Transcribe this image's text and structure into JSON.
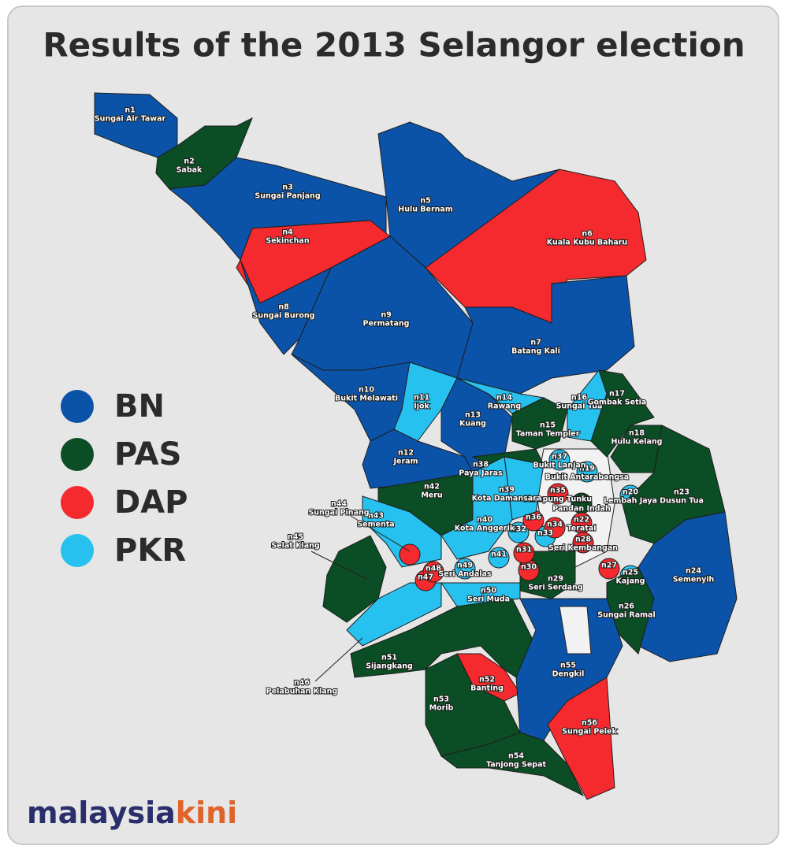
{
  "title": "Results of the 2013 Selangor election",
  "legend": [
    {
      "party": "BN",
      "color": "#0b53a8"
    },
    {
      "party": "PAS",
      "color": "#0b4d24"
    },
    {
      "party": "DAP",
      "color": "#f52a2e"
    },
    {
      "party": "PKR",
      "color": "#27c1ef"
    }
  ],
  "constituencies": [
    {
      "code": "n1",
      "name": "Sungai Air Tawar",
      "party": "BN"
    },
    {
      "code": "n2",
      "name": "Sabak",
      "party": "PAS"
    },
    {
      "code": "n3",
      "name": "Sungai Panjang",
      "party": "BN"
    },
    {
      "code": "n4",
      "name": "Sekinchan",
      "party": "DAP"
    },
    {
      "code": "n5",
      "name": "Hulu Bernam",
      "party": "BN"
    },
    {
      "code": "n6",
      "name": "Kuala Kubu Baharu",
      "party": "DAP"
    },
    {
      "code": "n7",
      "name": "Batang Kali",
      "party": "BN"
    },
    {
      "code": "n8",
      "name": "Sungai Burong",
      "party": "BN"
    },
    {
      "code": "n9",
      "name": "Permatang",
      "party": "BN"
    },
    {
      "code": "n10",
      "name": "Bukit Melawati",
      "party": "BN"
    },
    {
      "code": "n11",
      "name": "Ijok",
      "party": "PKR"
    },
    {
      "code": "n12",
      "name": "Jeram",
      "party": "BN"
    },
    {
      "code": "n13",
      "name": "Kuang",
      "party": "BN"
    },
    {
      "code": "n14",
      "name": "Rawang",
      "party": "PKR"
    },
    {
      "code": "n15",
      "name": "Taman Templer",
      "party": "PAS"
    },
    {
      "code": "n16",
      "name": "Sungai Tua",
      "party": "PKR"
    },
    {
      "code": "n17",
      "name": "Gombak Setia",
      "party": "PAS"
    },
    {
      "code": "n18",
      "name": "Hulu Kelang",
      "party": "PAS"
    },
    {
      "code": "n19",
      "name": "Bukit Antarabangsa",
      "party": "PKR"
    },
    {
      "code": "n20",
      "name": "Lembah Jaya",
      "party": "PKR"
    },
    {
      "code": "n21",
      "name": "Pandan Indah",
      "party": "PAS"
    },
    {
      "code": "n22",
      "name": "Teratai",
      "party": "DAP"
    },
    {
      "code": "n23",
      "name": "Dusun Tua",
      "party": "PAS"
    },
    {
      "code": "n24",
      "name": "Semenyih",
      "party": "BN"
    },
    {
      "code": "n25",
      "name": "Kajang",
      "party": "PKR"
    },
    {
      "code": "n26",
      "name": "Sungai Ramal",
      "party": "PAS"
    },
    {
      "code": "n27",
      "party": "DAP"
    },
    {
      "code": "n28",
      "name": "Seri Kembangan",
      "party": "DAP"
    },
    {
      "code": "n29",
      "name": "Seri Serdang",
      "party": "PAS"
    },
    {
      "code": "n30",
      "party": "DAP"
    },
    {
      "code": "n31",
      "party": "DAP"
    },
    {
      "code": "n32",
      "party": "PKR"
    },
    {
      "code": "n33",
      "party": "PKR"
    },
    {
      "code": "n34",
      "party": "DAP"
    },
    {
      "code": "n35",
      "name": "Kampung Tunku",
      "party": "DAP"
    },
    {
      "code": "n36",
      "party": "DAP"
    },
    {
      "code": "n37",
      "name": "Bukit Lanjan",
      "party": "PKR"
    },
    {
      "code": "n38",
      "name": "Paya Jaras",
      "party": "PAS"
    },
    {
      "code": "n39",
      "name": "Kota Damansara",
      "party": "PKR"
    },
    {
      "code": "n40",
      "name": "Kota Anggerik",
      "party": "PKR"
    },
    {
      "code": "n41",
      "party": "PKR"
    },
    {
      "code": "n42",
      "name": "Meru",
      "party": "PAS"
    },
    {
      "code": "n43",
      "name": "Sementa",
      "party": "PKR"
    },
    {
      "code": "n44",
      "name": "Sungai Pinang",
      "party": "DAP"
    },
    {
      "code": "n45",
      "name": "Selat Klang",
      "party": "PAS"
    },
    {
      "code": "n46",
      "name": "Pelabuhan Klang",
      "party": "PKR"
    },
    {
      "code": "n47",
      "party": "DAP"
    },
    {
      "code": "n48",
      "party": "DAP"
    },
    {
      "code": "n49",
      "name": "Seri Andalas",
      "party": "PKR"
    },
    {
      "code": "n50",
      "name": "Seri Muda",
      "party": "PKR"
    },
    {
      "code": "n51",
      "name": "Sijangkang",
      "party": "PAS"
    },
    {
      "code": "n52",
      "name": "Banting",
      "party": "DAP"
    },
    {
      "code": "n53",
      "name": "Morib",
      "party": "PAS"
    },
    {
      "code": "n54",
      "name": "Tanjong Sepat",
      "party": "PAS"
    },
    {
      "code": "n55",
      "name": "Dengkil",
      "party": "BN"
    },
    {
      "code": "n56",
      "name": "Sungai Pelek",
      "party": "DAP"
    }
  ],
  "logo": {
    "first": "malaysia",
    "second": "kini"
  }
}
